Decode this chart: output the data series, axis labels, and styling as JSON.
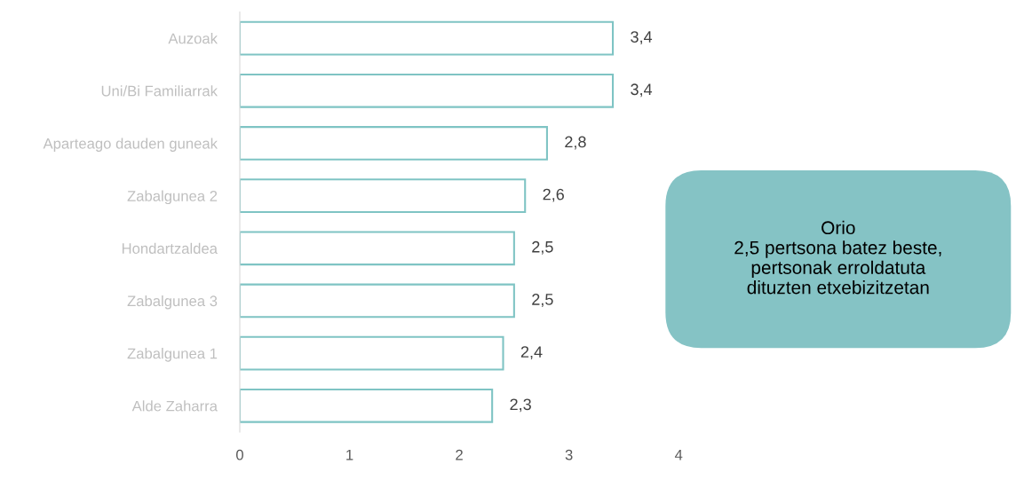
{
  "chart_data": {
    "type": "bar",
    "orientation": "horizontal",
    "categories": [
      "Auzoak",
      "Uni/Bi Familiarrak",
      "Aparteago dauden guneak",
      "Zabalgunea 2",
      "Hondartzaldea",
      "Zabalgunea 3",
      "Zabalgunea 1",
      "Alde Zaharra"
    ],
    "values": [
      3.4,
      3.4,
      2.8,
      2.6,
      2.5,
      2.5,
      2.4,
      2.3
    ],
    "value_labels": [
      "3,4",
      "3,4",
      "2,8",
      "2,6",
      "2,5",
      "2,5",
      "2,4",
      "2,3"
    ],
    "color": "#7fc4c4",
    "xlim": [
      0,
      4
    ],
    "xticks": [
      0,
      1,
      2,
      3,
      4
    ],
    "grid": false,
    "legend": false,
    "annotations": [
      "Orio\n2,5 pertsona batez beste,\npertsonak erroldatuta\ndituzten etxebizitzetan"
    ]
  }
}
